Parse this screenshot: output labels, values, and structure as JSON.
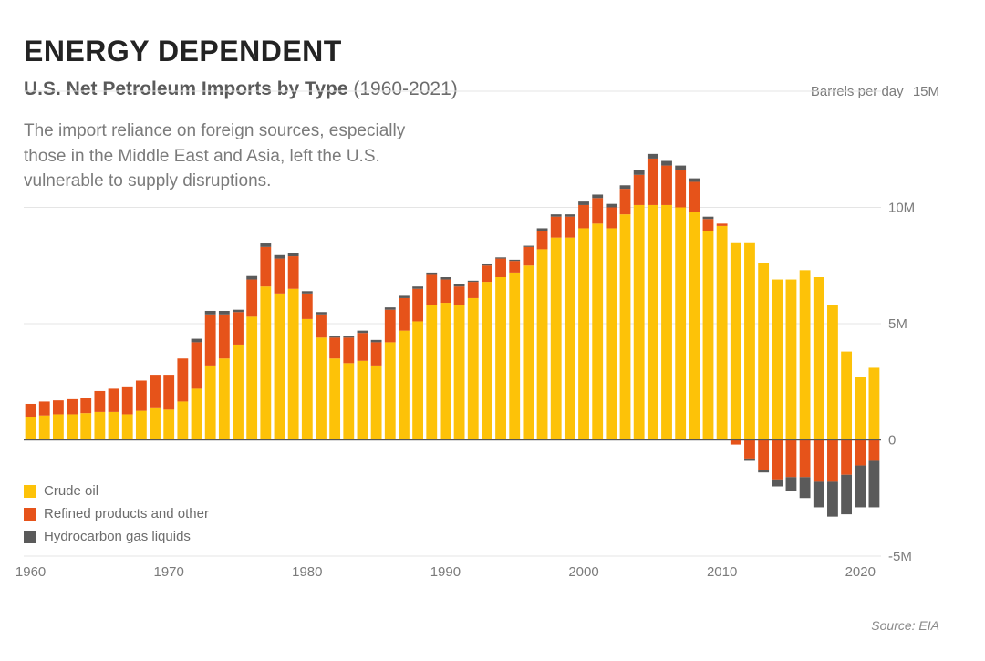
{
  "title": "ENERGY DEPENDENT",
  "title_fontsize": 32,
  "title_color": "#232323",
  "subtitle_bold": "U.S. Net Petroleum Imports by Type",
  "subtitle_range": " (1960-2021)",
  "subtitle_fontsize": 21,
  "description": "The import reliance on foreign sources, especially those in the Middle East and Asia, left the U.S. vulnerable to supply disruptions.",
  "description_fontsize": 19,
  "y_axis_title": "Barrels per day",
  "source_label": "Source: EIA",
  "legend": [
    {
      "label": "Crude oil",
      "color": "#fdc208"
    },
    {
      "label": "Refined products and other",
      "color": "#e6531a"
    },
    {
      "label": "Hydrocarbon gas liquids",
      "color": "#5a5a5a"
    }
  ],
  "chart": {
    "type": "stacked-bar",
    "background_color": "#ffffff",
    "grid_color": "#e5e5e5",
    "zero_line_color": "#555555",
    "text_color": "#7b7b7b",
    "ylim": [
      -5,
      15
    ],
    "yticks": [
      {
        "v": 15,
        "label": "15M"
      },
      {
        "v": 10,
        "label": "10M"
      },
      {
        "v": 5,
        "label": "5M"
      },
      {
        "v": 0,
        "label": "0"
      },
      {
        "v": -5,
        "label": "-5M"
      }
    ],
    "xticks": [
      1960,
      1970,
      1980,
      1990,
      2000,
      2010,
      2020
    ],
    "bar_gap_ratio": 0.22,
    "series_keys": [
      "crude",
      "refined",
      "hgl"
    ],
    "series_colors": {
      "crude": "#fdc208",
      "refined": "#e6531a",
      "hgl": "#5a5a5a"
    },
    "years": [
      1960,
      1961,
      1962,
      1963,
      1964,
      1965,
      1966,
      1967,
      1968,
      1969,
      1970,
      1971,
      1972,
      1973,
      1974,
      1975,
      1976,
      1977,
      1978,
      1979,
      1980,
      1981,
      1982,
      1983,
      1984,
      1985,
      1986,
      1987,
      1988,
      1989,
      1990,
      1991,
      1992,
      1993,
      1994,
      1995,
      1996,
      1997,
      1998,
      1999,
      2000,
      2001,
      2002,
      2003,
      2004,
      2005,
      2006,
      2007,
      2008,
      2009,
      2010,
      2011,
      2012,
      2013,
      2014,
      2015,
      2016,
      2017,
      2018,
      2019,
      2020,
      2021
    ],
    "data": [
      {
        "crude": 1.0,
        "refined": 0.55,
        "hgl": 0.0
      },
      {
        "crude": 1.05,
        "refined": 0.6,
        "hgl": 0.0
      },
      {
        "crude": 1.1,
        "refined": 0.6,
        "hgl": 0.0
      },
      {
        "crude": 1.1,
        "refined": 0.65,
        "hgl": 0.0
      },
      {
        "crude": 1.15,
        "refined": 0.65,
        "hgl": 0.0
      },
      {
        "crude": 1.2,
        "refined": 0.9,
        "hgl": 0.0
      },
      {
        "crude": 1.2,
        "refined": 1.0,
        "hgl": 0.0
      },
      {
        "crude": 1.1,
        "refined": 1.2,
        "hgl": 0.0
      },
      {
        "crude": 1.25,
        "refined": 1.3,
        "hgl": 0.0
      },
      {
        "crude": 1.4,
        "refined": 1.4,
        "hgl": 0.0
      },
      {
        "crude": 1.3,
        "refined": 1.5,
        "hgl": 0.0
      },
      {
        "crude": 1.65,
        "refined": 1.85,
        "hgl": 0.0
      },
      {
        "crude": 2.2,
        "refined": 2.0,
        "hgl": 0.15
      },
      {
        "crude": 3.2,
        "refined": 2.2,
        "hgl": 0.15
      },
      {
        "crude": 3.5,
        "refined": 1.9,
        "hgl": 0.15
      },
      {
        "crude": 4.1,
        "refined": 1.4,
        "hgl": 0.1
      },
      {
        "crude": 5.3,
        "refined": 1.6,
        "hgl": 0.15
      },
      {
        "crude": 6.6,
        "refined": 1.7,
        "hgl": 0.15
      },
      {
        "crude": 6.3,
        "refined": 1.5,
        "hgl": 0.15
      },
      {
        "crude": 6.5,
        "refined": 1.4,
        "hgl": 0.15
      },
      {
        "crude": 5.2,
        "refined": 1.1,
        "hgl": 0.1
      },
      {
        "crude": 4.4,
        "refined": 1.0,
        "hgl": 0.1
      },
      {
        "crude": 3.5,
        "refined": 0.9,
        "hgl": 0.05
      },
      {
        "crude": 3.3,
        "refined": 1.1,
        "hgl": 0.05
      },
      {
        "crude": 3.4,
        "refined": 1.2,
        "hgl": 0.1
      },
      {
        "crude": 3.2,
        "refined": 1.0,
        "hgl": 0.1
      },
      {
        "crude": 4.2,
        "refined": 1.4,
        "hgl": 0.1
      },
      {
        "crude": 4.7,
        "refined": 1.4,
        "hgl": 0.1
      },
      {
        "crude": 5.1,
        "refined": 1.4,
        "hgl": 0.1
      },
      {
        "crude": 5.8,
        "refined": 1.3,
        "hgl": 0.1
      },
      {
        "crude": 5.9,
        "refined": 1.0,
        "hgl": 0.1
      },
      {
        "crude": 5.8,
        "refined": 0.8,
        "hgl": 0.1
      },
      {
        "crude": 6.1,
        "refined": 0.7,
        "hgl": 0.05
      },
      {
        "crude": 6.8,
        "refined": 0.7,
        "hgl": 0.05
      },
      {
        "crude": 7.0,
        "refined": 0.8,
        "hgl": 0.05
      },
      {
        "crude": 7.2,
        "refined": 0.5,
        "hgl": 0.05
      },
      {
        "crude": 7.5,
        "refined": 0.8,
        "hgl": 0.05
      },
      {
        "crude": 8.2,
        "refined": 0.8,
        "hgl": 0.1
      },
      {
        "crude": 8.7,
        "refined": 0.9,
        "hgl": 0.1
      },
      {
        "crude": 8.7,
        "refined": 0.9,
        "hgl": 0.1
      },
      {
        "crude": 9.1,
        "refined": 1.0,
        "hgl": 0.15
      },
      {
        "crude": 9.3,
        "refined": 1.1,
        "hgl": 0.15
      },
      {
        "crude": 9.1,
        "refined": 0.9,
        "hgl": 0.15
      },
      {
        "crude": 9.7,
        "refined": 1.1,
        "hgl": 0.15
      },
      {
        "crude": 10.1,
        "refined": 1.3,
        "hgl": 0.2
      },
      {
        "crude": 10.1,
        "refined": 2.0,
        "hgl": 0.2
      },
      {
        "crude": 10.1,
        "refined": 1.7,
        "hgl": 0.2
      },
      {
        "crude": 10.0,
        "refined": 1.6,
        "hgl": 0.2
      },
      {
        "crude": 9.8,
        "refined": 1.3,
        "hgl": 0.15
      },
      {
        "crude": 9.0,
        "refined": 0.5,
        "hgl": 0.1
      },
      {
        "crude": 9.2,
        "refined": 0.1,
        "hgl": 0.0
      },
      {
        "crude": 8.5,
        "refined": -0.2,
        "hgl": 0.0
      },
      {
        "crude": 8.5,
        "refined": -0.8,
        "hgl": -0.1
      },
      {
        "crude": 7.6,
        "refined": -1.3,
        "hgl": -0.1
      },
      {
        "crude": 6.9,
        "refined": -1.7,
        "hgl": -0.3
      },
      {
        "crude": 6.9,
        "refined": -1.6,
        "hgl": -0.6
      },
      {
        "crude": 7.3,
        "refined": -1.6,
        "hgl": -0.9
      },
      {
        "crude": 7.0,
        "refined": -1.8,
        "hgl": -1.1
      },
      {
        "crude": 5.8,
        "refined": -1.8,
        "hgl": -1.5
      },
      {
        "crude": 3.8,
        "refined": -1.5,
        "hgl": -1.7
      },
      {
        "crude": 2.7,
        "refined": -1.1,
        "hgl": -1.8
      },
      {
        "crude": 3.1,
        "refined": -0.9,
        "hgl": -2.0
      }
    ]
  }
}
